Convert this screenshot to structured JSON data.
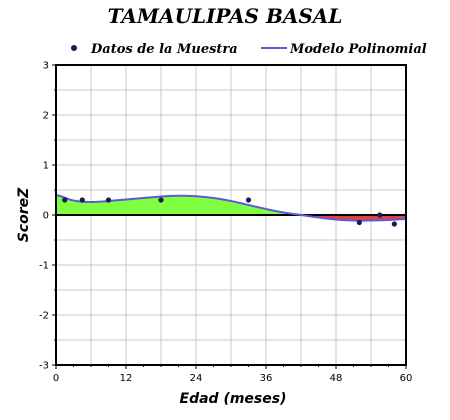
{
  "chart_data": {
    "type": "scatter",
    "title": "TAMAULIPAS BASAL",
    "xlabel": "Edad (meses)",
    "ylabel": "ScoreZ",
    "xlim": [
      0,
      60
    ],
    "ylim": [
      -3,
      3
    ],
    "x_ticks": [
      0,
      12,
      24,
      36,
      48,
      60
    ],
    "y_ticks": [
      -3,
      -2,
      -1,
      0,
      1,
      2,
      3
    ],
    "x_tick_labels": [
      "0",
      "12",
      "24",
      "36",
      "48",
      "60"
    ],
    "y_tick_labels": [
      "-3",
      "-2",
      "-1",
      "0",
      "1",
      "2",
      "3"
    ],
    "grid": true,
    "legend_position": "top",
    "legend": [
      {
        "label": "Datos de la Muestra",
        "kind": "marker",
        "color": "#1a1a5a"
      },
      {
        "label": "Modelo Polinomial",
        "kind": "line",
        "color": "#5a5adf"
      }
    ],
    "series": [
      {
        "name": "Datos de la Muestra",
        "kind": "scatter",
        "x": [
          1.5,
          4.5,
          9,
          18,
          33,
          52,
          55.5,
          58
        ],
        "y": [
          0.3,
          0.3,
          0.3,
          0.3,
          0.3,
          -0.15,
          0.0,
          -0.18
        ]
      },
      {
        "name": "Modelo Polinomial",
        "kind": "line",
        "x": [
          0,
          3,
          6,
          9,
          12,
          15,
          18,
          21,
          24,
          27,
          30,
          33,
          36,
          39,
          42,
          45,
          48,
          51,
          54,
          57,
          60
        ],
        "y": [
          0.4,
          0.29,
          0.26,
          0.28,
          0.31,
          0.34,
          0.37,
          0.385,
          0.375,
          0.34,
          0.28,
          0.2,
          0.12,
          0.05,
          0.0,
          -0.05,
          -0.09,
          -0.11,
          -0.11,
          -0.1,
          -0.08
        ]
      }
    ],
    "fill_colors": {
      "positive": "#80ff40",
      "negative": "#e04040"
    }
  }
}
